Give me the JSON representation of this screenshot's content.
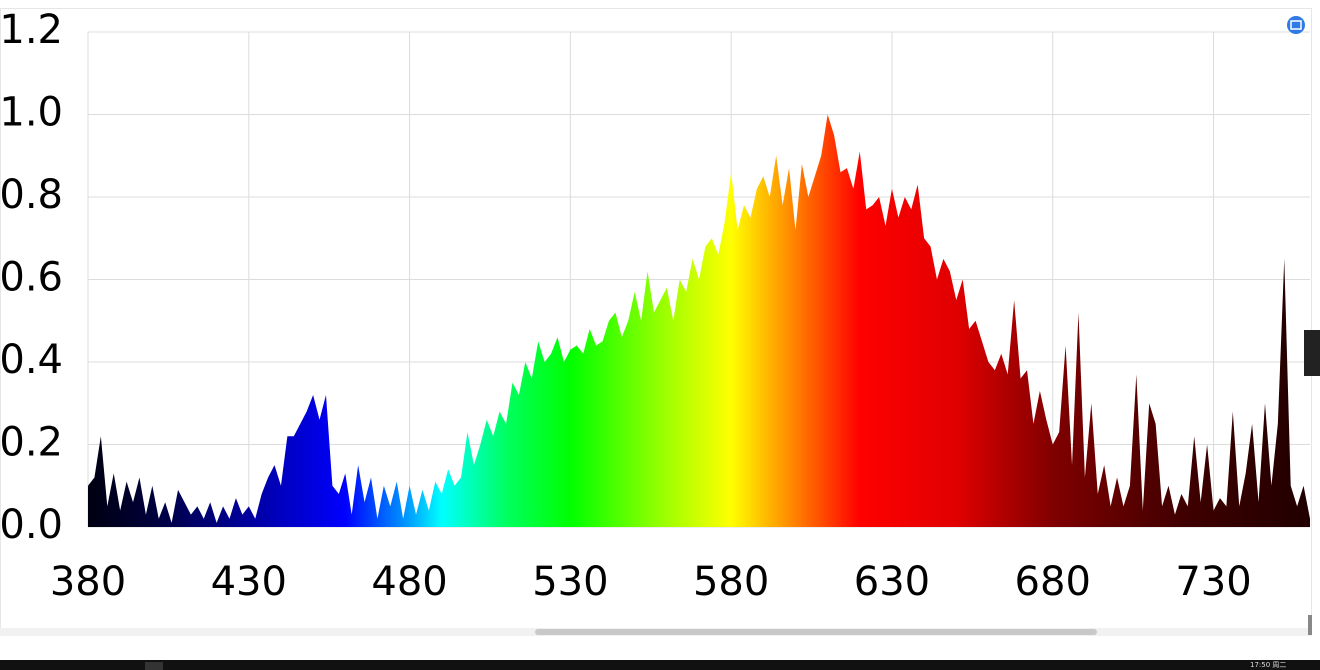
{
  "chart_data": {
    "type": "area",
    "x": [
      380,
      382,
      384,
      386,
      388,
      390,
      392,
      394,
      396,
      398,
      400,
      402,
      404,
      406,
      408,
      410,
      412,
      414,
      416,
      418,
      420,
      422,
      424,
      426,
      428,
      430,
      432,
      434,
      436,
      438,
      440,
      442,
      444,
      446,
      448,
      450,
      452,
      454,
      456,
      458,
      460,
      462,
      464,
      466,
      468,
      470,
      472,
      474,
      476,
      478,
      480,
      482,
      484,
      486,
      488,
      490,
      492,
      494,
      496,
      498,
      500,
      502,
      504,
      506,
      508,
      510,
      512,
      514,
      516,
      518,
      520,
      522,
      524,
      526,
      528,
      530,
      532,
      534,
      536,
      538,
      540,
      542,
      544,
      546,
      548,
      550,
      552,
      554,
      556,
      558,
      560,
      562,
      564,
      566,
      568,
      570,
      572,
      574,
      576,
      578,
      580,
      582,
      584,
      586,
      588,
      590,
      592,
      594,
      596,
      598,
      600,
      602,
      604,
      606,
      608,
      610,
      612,
      614,
      616,
      618,
      620,
      622,
      624,
      626,
      628,
      630,
      632,
      634,
      636,
      638,
      640,
      642,
      644,
      646,
      648,
      650,
      652,
      654,
      656,
      658,
      660,
      662,
      664,
      666,
      668,
      670,
      672,
      674,
      676,
      678,
      680,
      682,
      684,
      686,
      688,
      690,
      692,
      694,
      696,
      698,
      700,
      702,
      704,
      706,
      708,
      710,
      712,
      714,
      716,
      718,
      720,
      722,
      724,
      726,
      728,
      730,
      732,
      734,
      736,
      738,
      740,
      742,
      744,
      746,
      748,
      750,
      752,
      754,
      756,
      758,
      760
    ],
    "values": [
      0.1,
      0.12,
      0.22,
      0.05,
      0.13,
      0.04,
      0.11,
      0.06,
      0.12,
      0.03,
      0.1,
      0.02,
      0.06,
      0.01,
      0.09,
      0.06,
      0.03,
      0.05,
      0.02,
      0.06,
      0.01,
      0.05,
      0.02,
      0.07,
      0.03,
      0.05,
      0.02,
      0.08,
      0.12,
      0.15,
      0.1,
      0.22,
      0.22,
      0.25,
      0.28,
      0.32,
      0.26,
      0.32,
      0.1,
      0.08,
      0.13,
      0.03,
      0.15,
      0.06,
      0.12,
      0.02,
      0.1,
      0.05,
      0.11,
      0.02,
      0.1,
      0.03,
      0.09,
      0.04,
      0.11,
      0.08,
      0.14,
      0.1,
      0.12,
      0.23,
      0.15,
      0.2,
      0.26,
      0.22,
      0.28,
      0.25,
      0.35,
      0.32,
      0.4,
      0.36,
      0.45,
      0.4,
      0.42,
      0.46,
      0.4,
      0.43,
      0.44,
      0.42,
      0.48,
      0.44,
      0.45,
      0.5,
      0.52,
      0.46,
      0.5,
      0.57,
      0.5,
      0.62,
      0.52,
      0.55,
      0.58,
      0.5,
      0.6,
      0.57,
      0.65,
      0.6,
      0.68,
      0.7,
      0.66,
      0.74,
      0.86,
      0.72,
      0.78,
      0.75,
      0.82,
      0.85,
      0.8,
      0.9,
      0.78,
      0.87,
      0.72,
      0.88,
      0.8,
      0.85,
      0.9,
      1.0,
      0.95,
      0.86,
      0.87,
      0.82,
      0.91,
      0.77,
      0.78,
      0.8,
      0.73,
      0.82,
      0.75,
      0.8,
      0.77,
      0.83,
      0.7,
      0.68,
      0.6,
      0.65,
      0.62,
      0.55,
      0.6,
      0.48,
      0.5,
      0.45,
      0.4,
      0.38,
      0.42,
      0.37,
      0.55,
      0.36,
      0.38,
      0.25,
      0.33,
      0.26,
      0.2,
      0.23,
      0.44,
      0.15,
      0.52,
      0.12,
      0.3,
      0.08,
      0.15,
      0.05,
      0.12,
      0.05,
      0.1,
      0.37,
      0.04,
      0.3,
      0.25,
      0.05,
      0.1,
      0.03,
      0.08,
      0.05,
      0.22,
      0.06,
      0.2,
      0.04,
      0.07,
      0.05,
      0.28,
      0.05,
      0.13,
      0.25,
      0.06,
      0.3,
      0.1,
      0.25,
      0.65,
      0.1,
      0.05,
      0.1,
      0.02
    ],
    "color_stops": [
      {
        "x": 380,
        "color": "#000010"
      },
      {
        "x": 400,
        "color": "#00003a"
      },
      {
        "x": 440,
        "color": "#0000c0"
      },
      {
        "x": 460,
        "color": "#0000ff"
      },
      {
        "x": 480,
        "color": "#00a0ff"
      },
      {
        "x": 490,
        "color": "#00ffff"
      },
      {
        "x": 510,
        "color": "#00ff60"
      },
      {
        "x": 530,
        "color": "#00ff00"
      },
      {
        "x": 560,
        "color": "#a0ff00"
      },
      {
        "x": 580,
        "color": "#ffff00"
      },
      {
        "x": 600,
        "color": "#ff8000"
      },
      {
        "x": 620,
        "color": "#ff0000"
      },
      {
        "x": 650,
        "color": "#e00000"
      },
      {
        "x": 680,
        "color": "#800000"
      },
      {
        "x": 720,
        "color": "#400000"
      },
      {
        "x": 760,
        "color": "#200000"
      }
    ],
    "xlim": [
      380,
      760
    ],
    "xticks": [
      380,
      430,
      480,
      530,
      580,
      630,
      680,
      730
    ],
    "ylim": [
      0,
      1.2
    ],
    "yticks": [
      {
        "value": 0,
        "label": "0.0"
      },
      0.2,
      0.4,
      0.6,
      0.8,
      {
        "value": 1,
        "label": "1.0"
      },
      1.2
    ],
    "grid": true
  },
  "taskbar": {
    "clock": "17:50 周二"
  }
}
